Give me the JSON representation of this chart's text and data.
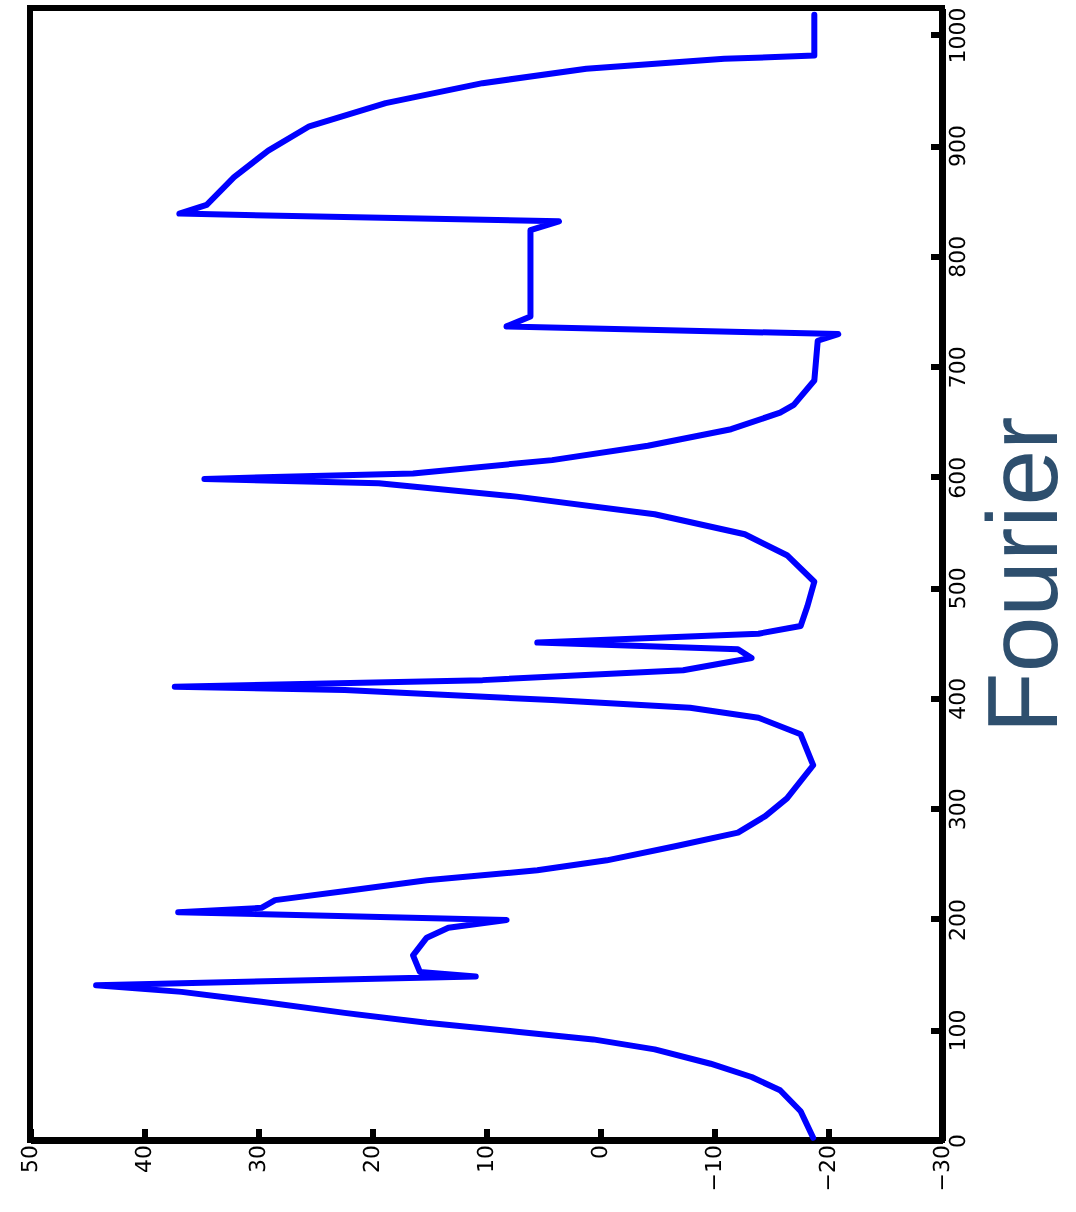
{
  "chart_data": {
    "type": "line",
    "ylabel": "Fourier",
    "color": "#0000ff",
    "line_style": "solid",
    "grid": false,
    "x": [
      -18.7,
      -17.6,
      -15.8,
      -13.3,
      -9.7,
      -4.8,
      0.6,
      7.3,
      15.2,
      22.4,
      29.7,
      36.7,
      44.2,
      10.9,
      15.8,
      16.4,
      15.2,
      13.3,
      8.2,
      37,
      29.7,
      28.5,
      21.8,
      15.2,
      5.5,
      -0.6,
      -6.7,
      -12.1,
      -14.5,
      -16.4,
      -18.7,
      -17.6,
      -13.9,
      -7.9,
      4.2,
      22.4,
      37.3,
      10.3,
      -7.3,
      -13.3,
      -12.1,
      5.5,
      -13.9,
      -17.6,
      -18.2,
      -18.8,
      -16.4,
      -12.7,
      -4.8,
      7.3,
      19.4,
      34.7,
      16.4,
      4.2,
      -4.2,
      -11.5,
      -15.8,
      -17,
      -18.8,
      -19.1,
      -20.9,
      8.2,
      6.1,
      6.1,
      6.1,
      3.6,
      36.9,
      34.5,
      32.1,
      29.1,
      25.5,
      18.8,
      10.3,
      1.2,
      -10.9,
      -18.8,
      -18.8
    ],
    "values": [
      2,
      26,
      45,
      57,
      69,
      82,
      91,
      98,
      106,
      115,
      125,
      134,
      140,
      148,
      152,
      167,
      183,
      192,
      199,
      206,
      210,
      217,
      226,
      235,
      244,
      253,
      266,
      278,
      293,
      309,
      339,
      367,
      382,
      391,
      398,
      407,
      410,
      416,
      425,
      436,
      444,
      450,
      458,
      465,
      483,
      505,
      529,
      548,
      566,
      582,
      594,
      598,
      603,
      615,
      628,
      643,
      658,
      665,
      687,
      723,
      729,
      736,
      745,
      785,
      823,
      831,
      838,
      846,
      871,
      895,
      917,
      938,
      956,
      969,
      978,
      981,
      1018
    ],
    "xlim": [
      50,
      -30
    ],
    "xticks": [
      -30,
      -20,
      -10,
      0,
      10,
      20,
      30,
      40,
      50
    ],
    "ylim": [
      0,
      1024
    ],
    "yticks": [
      0,
      100,
      200,
      300,
      400,
      500,
      600,
      700,
      800,
      900,
      1000
    ]
  }
}
